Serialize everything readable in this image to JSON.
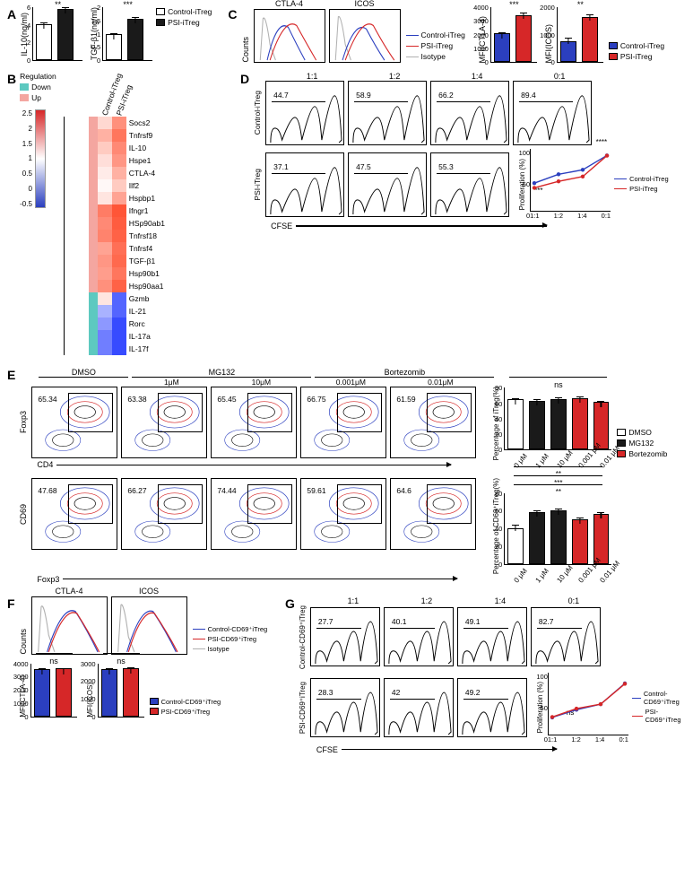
{
  "colors": {
    "control_blue": "#2b3fbf",
    "psi_red": "#d62728",
    "dmso_white": "#ffffff",
    "mg132_black": "#1a1a1a",
    "bortezomib_red": "#d62728",
    "isotype_gray": "#b0b0b0",
    "heat_down": "#5dc9c0",
    "heat_up": "#f4a6a0"
  },
  "A": {
    "legend": [
      "Control-iTreg",
      "PSI-iTreg"
    ],
    "il10": {
      "ylabel": "IL-10(ng/ml)",
      "ymax": 6,
      "ytick": 2,
      "bars": [
        {
          "label": "Control",
          "value": 4.1,
          "err": 0.3,
          "fill": "#ffffff"
        },
        {
          "label": "PSI",
          "value": 5.8,
          "err": 0.3,
          "fill": "#1a1a1a"
        }
      ],
      "sig": "**"
    },
    "tgfb": {
      "ylabel": "TGF-β1(ng/ml)",
      "ymax": 2,
      "ytick": 0.5,
      "bars": [
        {
          "label": "Control",
          "value": 1.0,
          "err": 0.05,
          "fill": "#ffffff"
        },
        {
          "label": "PSI",
          "value": 1.55,
          "err": 0.1,
          "fill": "#1a1a1a"
        }
      ],
      "sig": "***"
    }
  },
  "B": {
    "reg_legend_title": "Regulation",
    "reg_legend": [
      {
        "name": "Down",
        "fill": "#5dc9c0"
      },
      {
        "name": "Up",
        "fill": "#f4a6a0"
      }
    ],
    "scale_ticks": [
      "2.5",
      "2",
      "1.5",
      "1",
      "0.5",
      "0",
      "-0.5"
    ],
    "cols": [
      "Control-iTreg",
      "PSI-iTreg"
    ],
    "rows": [
      {
        "gene": "Socs2",
        "reg": "Up",
        "v": [
          0.6,
          1.7
        ]
      },
      {
        "gene": "Tnfrsf9",
        "reg": "Up",
        "v": [
          1.2,
          2.1
        ]
      },
      {
        "gene": "IL-10",
        "reg": "Up",
        "v": [
          0.8,
          1.8
        ]
      },
      {
        "gene": "Hspe1",
        "reg": "Up",
        "v": [
          0.5,
          1.6
        ]
      },
      {
        "gene": "CTLA-4",
        "reg": "Up",
        "v": [
          0.3,
          1.2
        ]
      },
      {
        "gene": "Ilf2",
        "reg": "Up",
        "v": [
          0.1,
          0.8
        ]
      },
      {
        "gene": "Hspbp1",
        "reg": "Up",
        "v": [
          0.4,
          1.4
        ]
      },
      {
        "gene": "Ifngr1",
        "reg": "Up",
        "v": [
          2.0,
          2.6
        ]
      },
      {
        "gene": "HSp90ab1",
        "reg": "Up",
        "v": [
          1.8,
          2.5
        ]
      },
      {
        "gene": "Tnfrsf18",
        "reg": "Up",
        "v": [
          1.9,
          2.4
        ]
      },
      {
        "gene": "Tnfrsf4",
        "reg": "Up",
        "v": [
          1.4,
          2.2
        ]
      },
      {
        "gene": "TGF-β1",
        "reg": "Up",
        "v": [
          1.6,
          2.3
        ]
      },
      {
        "gene": "Hsp90b1",
        "reg": "Up",
        "v": [
          1.5,
          2.1
        ]
      },
      {
        "gene": "Hsp90aa1",
        "reg": "Up",
        "v": [
          1.7,
          2.4
        ]
      },
      {
        "gene": "Gzmb",
        "reg": "Down",
        "v": [
          0.4,
          -0.6
        ]
      },
      {
        "gene": "IL-21",
        "reg": "Down",
        "v": [
          -0.3,
          -0.6
        ]
      },
      {
        "gene": "Rorc",
        "reg": "Down",
        "v": [
          -0.4,
          -0.7
        ]
      },
      {
        "gene": "IL-17a",
        "reg": "Down",
        "v": [
          -0.5,
          -0.7
        ]
      },
      {
        "gene": "IL-17f",
        "reg": "Down",
        "v": [
          -0.5,
          -0.7
        ]
      }
    ]
  },
  "C": {
    "hist_titles": [
      "CTLA-4",
      "ICOS"
    ],
    "hist_legend": [
      {
        "name": "Control-iTreg",
        "color": "#2b3fbf"
      },
      {
        "name": "PSI-iTreg",
        "color": "#d62728"
      },
      {
        "name": "Isotype",
        "color": "#b0b0b0"
      }
    ],
    "ctla4_bar": {
      "ylabel": "MFI(CTLA-4)",
      "ymax": 4000,
      "ytick": 1000,
      "sig": "***",
      "bars": [
        {
          "value": 2100,
          "err": 150,
          "fill": "#2b3fbf"
        },
        {
          "value": 3400,
          "err": 250,
          "fill": "#d62728"
        }
      ]
    },
    "icos_bar": {
      "ylabel": "MFI(ICOS)",
      "ymax": 2000,
      "ytick": 1000,
      "sig": "**",
      "bars": [
        {
          "value": 750,
          "err": 180,
          "fill": "#2b3fbf"
        },
        {
          "value": 1650,
          "err": 130,
          "fill": "#d62728"
        }
      ]
    },
    "bar_legend": [
      "Control-iTreg",
      "PSI-iTreg"
    ]
  },
  "D": {
    "ratios": [
      "1:1",
      "1:2",
      "1:4",
      "0:1"
    ],
    "row_labels": [
      "Control-iTreg",
      "PSI-iTreg"
    ],
    "pct_control": [
      44.7,
      58.9,
      66.2,
      89.4
    ],
    "pct_psi": [
      37.1,
      47.5,
      55.3
    ],
    "xlabel": "CFSE",
    "line": {
      "ylabel": "Proliferation (%)",
      "ymax": 100,
      "ytick": 50,
      "x": [
        "1:1",
        "1:2",
        "1:4",
        "0:1"
      ],
      "series": [
        {
          "name": "Control-iTreg",
          "color": "#2b3fbf",
          "y": [
            44.7,
            58.9,
            66.2,
            89.4
          ]
        },
        {
          "name": "PSI-iTreg",
          "color": "#d62728",
          "y": [
            37.1,
            47.5,
            55.3,
            89.0
          ]
        }
      ],
      "sig_top": "****",
      "sig_left": "***"
    }
  },
  "E": {
    "group_headers": [
      "DMSO",
      "MG132",
      "Bortezomib"
    ],
    "doses": [
      "",
      "1μM",
      "10μM",
      "0.001μM",
      "0.01μM"
    ],
    "foxp3_y": "Foxp3",
    "cd4_x": "CD4",
    "cd69_y": "CD69",
    "foxp3_x": "Foxp3",
    "row1_pct": [
      65.34,
      63.38,
      65.45,
      66.75,
      61.59
    ],
    "row2_pct": [
      47.68,
      66.27,
      74.44,
      59.61,
      64.6
    ],
    "bar_itreg": {
      "ylabel": "Percentage of  iTreg(%)",
      "ymax": 80,
      "ytick": 20,
      "sig": "ns",
      "xlabels": [
        "0 μM",
        "1 μM",
        "10 μM",
        "0.001 μM",
        "0.01 μM"
      ],
      "bars": [
        {
          "value": 65.3,
          "err": 3,
          "fill": "#ffffff"
        },
        {
          "value": 63.4,
          "err": 3,
          "fill": "#1a1a1a"
        },
        {
          "value": 65.5,
          "err": 3,
          "fill": "#1a1a1a"
        },
        {
          "value": 66.8,
          "err": 3,
          "fill": "#d62728"
        },
        {
          "value": 61.6,
          "err": 3,
          "fill": "#d62728"
        }
      ],
      "legend": [
        {
          "name": "DMSO",
          "fill": "#ffffff"
        },
        {
          "name": "MG132",
          "fill": "#1a1a1a"
        },
        {
          "name": "Bortezomib",
          "fill": "#d62728"
        }
      ]
    },
    "bar_cd69": {
      "ylabel": "Percentage of  CD69⁺iTreg(%)",
      "ymax": 80,
      "ytick": 20,
      "xlabels": [
        "0 μM",
        "1 μM",
        "10 μM",
        "0.001 μM",
        "0.01 μM"
      ],
      "bars": [
        {
          "value": 40,
          "err": 5,
          "fill": "#ffffff"
        },
        {
          "value": 58,
          "err": 3,
          "fill": "#1a1a1a"
        },
        {
          "value": 60,
          "err": 3,
          "fill": "#1a1a1a"
        },
        {
          "value": 50,
          "err": 3,
          "fill": "#d62728"
        },
        {
          "value": 56,
          "err": 3,
          "fill": "#d62728"
        }
      ],
      "sig_lines": [
        {
          "span": "1-4",
          "label": "**"
        },
        {
          "span": "0-2",
          "label": "***"
        },
        {
          "span": "0-1",
          "label": "**"
        }
      ]
    }
  },
  "F": {
    "hist_titles": [
      "CTLA-4",
      "ICOS"
    ],
    "hist_legend": [
      {
        "name": "Control-CD69⁺iTreg",
        "color": "#2b3fbf"
      },
      {
        "name": "PSI-CD69⁺iTreg",
        "color": "#d62728"
      },
      {
        "name": "Isotype",
        "color": "#b0b0b0"
      }
    ],
    "ylab": "Counts",
    "ctla4_bar": {
      "ylabel": "MFI(CTLA-4)",
      "ymax": 4000,
      "ytick": 1000,
      "sig": "ns",
      "bars": [
        {
          "value": 3550,
          "err": 120,
          "fill": "#2b3fbf"
        },
        {
          "value": 3600,
          "err": 120,
          "fill": "#d62728"
        }
      ]
    },
    "icos_bar": {
      "ylabel": "MFI(ICOS)",
      "ymax": 3000,
      "ytick": 1000,
      "sig": "ns",
      "bars": [
        {
          "value": 2650,
          "err": 120,
          "fill": "#2b3fbf"
        },
        {
          "value": 2700,
          "err": 120,
          "fill": "#d62728"
        }
      ]
    },
    "bar_legend": [
      "Control-CD69⁺iTreg",
      "PSI-CD69⁺iTreg"
    ]
  },
  "G": {
    "ratios": [
      "1:1",
      "1:2",
      "1:4",
      "0:1"
    ],
    "row_labels": [
      "Control-CD69⁺iTreg",
      "PSI-CD69⁺iTreg"
    ],
    "pct_control": [
      27.7,
      40.1,
      49.1,
      82.7
    ],
    "pct_psi": [
      28.3,
      42.0,
      49.2
    ],
    "xlabel": "CFSE",
    "line": {
      "ylabel": "Proliferation (%)",
      "ymax": 100,
      "ytick": 50,
      "sig": "ns",
      "x": [
        "1:1",
        "1:2",
        "1:4",
        "0:1"
      ],
      "series": [
        {
          "name": "Control-CD69⁺iTreg",
          "color": "#2b3fbf",
          "y": [
            27.7,
            40.1,
            49.1,
            82.7
          ]
        },
        {
          "name": "PSI-CD69⁺iTreg",
          "color": "#d62728",
          "y": [
            28.3,
            42.0,
            49.2,
            82.0
          ]
        }
      ]
    }
  }
}
